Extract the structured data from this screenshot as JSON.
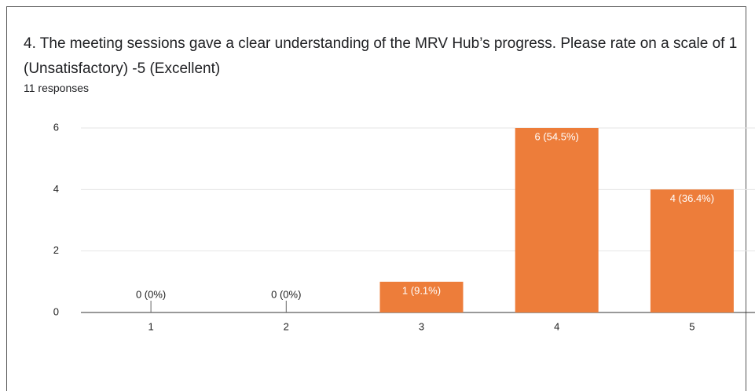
{
  "chart_data": {
    "type": "bar",
    "title": "4.  The meeting sessions gave a clear understanding of the MRV Hub’s progress. Please rate on a scale of 1 (Unsatisfactory) -5 (Excellent)",
    "subtitle": "11 responses",
    "categories": [
      "1",
      "2",
      "3",
      "4",
      "5"
    ],
    "values": [
      0,
      0,
      1,
      6,
      4
    ],
    "value_labels": [
      "0 (0%)",
      "0 (0%)",
      "1 (9.1%)",
      "6 (54.5%)",
      "4 (36.4%)"
    ],
    "color": "#ed7d3a",
    "ylim": [
      0,
      6
    ],
    "yticks": [
      0,
      2,
      4,
      6
    ],
    "grid": true
  }
}
